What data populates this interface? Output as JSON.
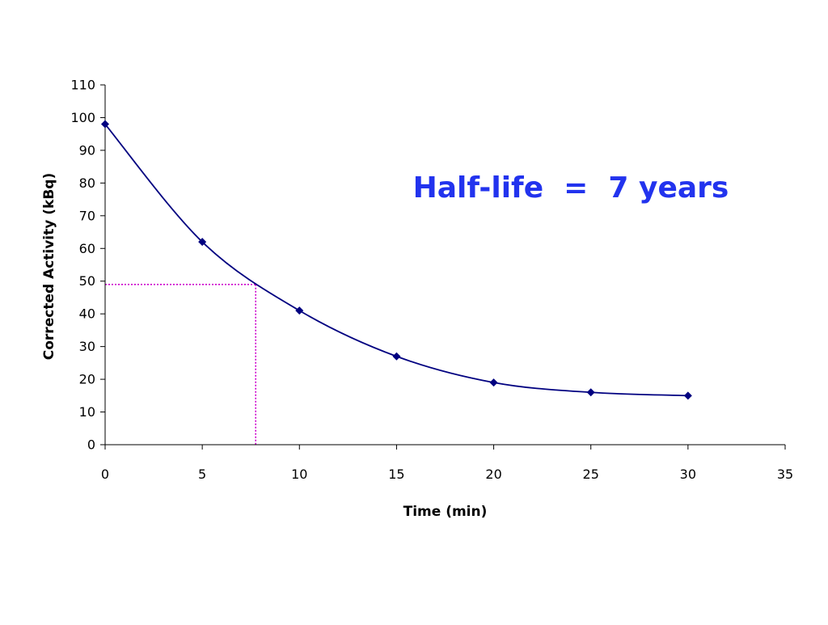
{
  "chart_data": {
    "type": "line",
    "title": "",
    "xlabel": "Time (min)",
    "ylabel": "Corrected Activity (kBq)",
    "xlim": [
      0,
      35
    ],
    "ylim": [
      0,
      110
    ],
    "x_ticks": [
      "0",
      "5",
      "10",
      "15",
      "20",
      "25",
      "30",
      "35"
    ],
    "y_ticks": [
      "0",
      "10",
      "20",
      "30",
      "40",
      "50",
      "60",
      "70",
      "80",
      "90",
      "100",
      "110"
    ],
    "grid": false,
    "legend": "none",
    "series": [
      {
        "x": [
          0,
          5,
          10,
          15,
          20,
          25,
          30
        ],
        "y": [
          98,
          62,
          41,
          27,
          19,
          16,
          15
        ],
        "color": "#000080",
        "marker": "diamond",
        "smooth": true
      }
    ],
    "reference_lines": {
      "x": 7.75,
      "y": 49,
      "color": "#CC00CC",
      "style": "dotted"
    },
    "annotation": {
      "text": "Half-life  =  7 years",
      "color": "#2233EE"
    }
  }
}
